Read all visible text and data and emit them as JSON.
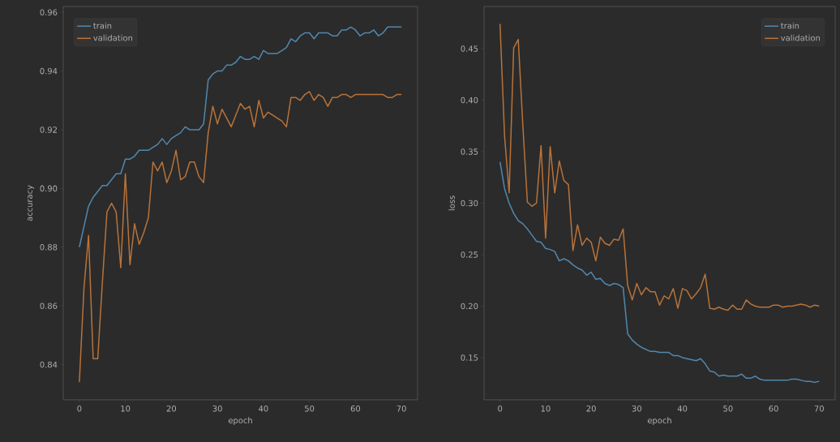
{
  "chart_data": [
    {
      "type": "line",
      "xlabel": "epoch",
      "ylabel": "accuracy",
      "legend": "top left",
      "grid": false,
      "marker": "none",
      "line_style": "solid",
      "x": [
        0,
        1,
        2,
        3,
        4,
        5,
        6,
        7,
        8,
        9,
        10,
        11,
        12,
        13,
        14,
        15,
        16,
        17,
        18,
        19,
        20,
        21,
        22,
        23,
        24,
        25,
        26,
        27,
        28,
        29,
        30,
        31,
        32,
        33,
        34,
        35,
        36,
        37,
        38,
        39,
        40,
        41,
        42,
        43,
        44,
        45,
        46,
        47,
        48,
        49,
        50,
        51,
        52,
        53,
        54,
        55,
        56,
        57,
        58,
        59,
        60,
        61,
        62,
        63,
        64,
        65,
        66,
        67,
        68,
        69,
        70
      ],
      "xlim": [
        -3.5,
        73.5
      ],
      "ylim": [
        0.828,
        0.962
      ],
      "xticks": [
        0,
        10,
        20,
        30,
        40,
        50,
        60,
        70
      ],
      "yticks": [
        0.84,
        0.86,
        0.88,
        {
          "value": 0.9,
          "label": "0.90"
        },
        0.92,
        0.94,
        0.96
      ],
      "series": [
        {
          "name": "train",
          "color": "#5088b0",
          "values": [
            0.88,
            0.887,
            0.894,
            0.897,
            0.899,
            0.901,
            0.901,
            0.903,
            0.905,
            0.905,
            0.91,
            0.91,
            0.911,
            0.913,
            0.913,
            0.913,
            0.914,
            0.915,
            0.917,
            0.915,
            0.917,
            0.918,
            0.919,
            0.921,
            0.92,
            0.92,
            0.92,
            0.922,
            0.937,
            0.939,
            0.94,
            0.94,
            0.942,
            0.942,
            0.943,
            0.945,
            0.944,
            0.944,
            0.945,
            0.944,
            0.947,
            0.946,
            0.946,
            0.946,
            0.947,
            0.948,
            0.951,
            0.95,
            0.952,
            0.953,
            0.953,
            0.951,
            0.953,
            0.953,
            0.953,
            0.952,
            0.952,
            0.954,
            0.954,
            0.955,
            0.954,
            0.952,
            0.953,
            0.953,
            0.954,
            0.952,
            0.953,
            0.955,
            0.955,
            0.955,
            0.955
          ]
        },
        {
          "name": "validation",
          "color": "#b8733a",
          "values": [
            0.834,
            0.866,
            0.884,
            0.842,
            0.842,
            0.868,
            0.892,
            0.895,
            0.892,
            0.873,
            0.905,
            0.874,
            0.888,
            0.881,
            0.885,
            0.89,
            0.909,
            0.906,
            0.909,
            0.902,
            0.906,
            0.913,
            0.903,
            0.904,
            0.909,
            0.909,
            0.904,
            0.902,
            0.919,
            0.928,
            0.922,
            0.927,
            0.924,
            0.921,
            0.925,
            0.929,
            0.927,
            0.928,
            0.921,
            0.93,
            0.924,
            0.926,
            0.925,
            0.924,
            0.923,
            0.921,
            0.931,
            0.931,
            0.93,
            0.932,
            0.933,
            0.93,
            0.932,
            0.931,
            0.928,
            0.931,
            0.931,
            0.932,
            0.932,
            0.931,
            0.932,
            0.932,
            0.932,
            0.932,
            0.932,
            0.932,
            0.932,
            0.931,
            0.931,
            0.932,
            0.932
          ]
        }
      ]
    },
    {
      "type": "line",
      "xlabel": "epoch",
      "ylabel": "loss",
      "legend": "top right",
      "grid": false,
      "marker": "none",
      "line_style": "solid",
      "x": [
        0,
        1,
        2,
        3,
        4,
        5,
        6,
        7,
        8,
        9,
        10,
        11,
        12,
        13,
        14,
        15,
        16,
        17,
        18,
        19,
        20,
        21,
        22,
        23,
        24,
        25,
        26,
        27,
        28,
        29,
        30,
        31,
        32,
        33,
        34,
        35,
        36,
        37,
        38,
        39,
        40,
        41,
        42,
        43,
        44,
        45,
        46,
        47,
        48,
        49,
        50,
        51,
        52,
        53,
        54,
        55,
        56,
        57,
        58,
        59,
        60,
        61,
        62,
        63,
        64,
        65,
        66,
        67,
        68,
        69,
        70
      ],
      "xlim": [
        -3.5,
        73.5
      ],
      "ylim": [
        0.109,
        0.491
      ],
      "xticks": [
        0,
        10,
        20,
        30,
        40,
        50,
        60,
        70
      ],
      "yticks": [
        0.15,
        {
          "value": 0.2,
          "label": "0.20"
        },
        0.25,
        {
          "value": 0.3,
          "label": "0.30"
        },
        0.35,
        {
          "value": 0.4,
          "label": "0.40"
        },
        0.45
      ],
      "series": [
        {
          "name": "train",
          "color": "#5088b0",
          "values": [
            0.34,
            0.314,
            0.3,
            0.29,
            0.283,
            0.28,
            0.275,
            0.269,
            0.263,
            0.262,
            0.256,
            0.255,
            0.253,
            0.244,
            0.246,
            0.244,
            0.24,
            0.237,
            0.235,
            0.23,
            0.233,
            0.226,
            0.227,
            0.222,
            0.22,
            0.222,
            0.221,
            0.218,
            0.173,
            0.167,
            0.163,
            0.16,
            0.158,
            0.156,
            0.156,
            0.155,
            0.155,
            0.155,
            0.152,
            0.152,
            0.15,
            0.149,
            0.148,
            0.147,
            0.149,
            0.144,
            0.137,
            0.136,
            0.132,
            0.133,
            0.132,
            0.132,
            0.132,
            0.134,
            0.13,
            0.13,
            0.132,
            0.129,
            0.128,
            0.128,
            0.128,
            0.128,
            0.128,
            0.128,
            0.129,
            0.129,
            0.128,
            0.127,
            0.127,
            0.126,
            0.127
          ]
        },
        {
          "name": "validation",
          "color": "#b8733a",
          "values": [
            0.474,
            0.365,
            0.31,
            0.451,
            0.459,
            0.376,
            0.301,
            0.297,
            0.3,
            0.356,
            0.266,
            0.355,
            0.31,
            0.341,
            0.322,
            0.318,
            0.254,
            0.279,
            0.259,
            0.266,
            0.262,
            0.244,
            0.267,
            0.261,
            0.259,
            0.265,
            0.264,
            0.275,
            0.22,
            0.206,
            0.222,
            0.211,
            0.218,
            0.214,
            0.214,
            0.201,
            0.21,
            0.207,
            0.217,
            0.198,
            0.217,
            0.215,
            0.207,
            0.212,
            0.218,
            0.231,
            0.198,
            0.197,
            0.199,
            0.197,
            0.196,
            0.201,
            0.197,
            0.197,
            0.206,
            0.202,
            0.2,
            0.199,
            0.199,
            0.199,
            0.201,
            0.201,
            0.199,
            0.2,
            0.2,
            0.201,
            0.202,
            0.201,
            0.199,
            0.201,
            0.2
          ]
        }
      ]
    }
  ]
}
